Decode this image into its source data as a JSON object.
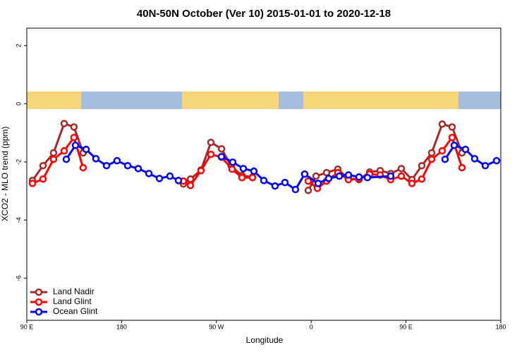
{
  "chart_data": {
    "type": "line",
    "title": "40N-50N October (Ver 10)   2015-01-01 to 2020-12-18",
    "x_label": "Longitude",
    "y_label": "XCO2 - MLO trend (ppm)",
    "xlim": [
      90,
      540
    ],
    "ylim": [
      -7.45,
      2.6
    ],
    "xticks": [
      {
        "value": 90,
        "label": "90 E"
      },
      {
        "value": 180,
        "label": "180"
      },
      {
        "value": 270,
        "label": "90 W"
      },
      {
        "value": 360,
        "label": "0"
      },
      {
        "value": 450,
        "label": "90 E"
      },
      {
        "value": 540,
        "label": "180"
      }
    ],
    "yticks": [
      -6,
      -4,
      -2,
      0,
      2
    ],
    "legend": "bottomleft",
    "series": [
      {
        "name": "Land Nadir",
        "color": "#a52a2a",
        "x": [
          95.4,
          105.4,
          115.4,
          125.5,
          134.8,
          143.5,
          null,
          238.7,
          245.4,
          255.4,
          264.8,
          274.9,
          284.2,
          294.3,
          304.3,
          null,
          357.2,
          364.6,
          374.6,
          385.3,
          395.4,
          405.4,
          415.5,
          425.5,
          435.5,
          445.6,
          455.7,
          465.0,
          474.4,
          484.4,
          493.8,
          503.2
        ],
        "values": [
          -2.64,
          -2.13,
          -1.69,
          -0.68,
          -0.8,
          -1.69,
          null,
          -2.76,
          -2.59,
          -2.28,
          -1.33,
          -1.55,
          -2.15,
          -2.47,
          -2.52,
          null,
          -2.98,
          -2.49,
          -2.37,
          -2.25,
          -2.57,
          -2.61,
          -2.35,
          -2.3,
          -2.4,
          -2.23,
          -2.61,
          -2.13,
          -1.69,
          -0.7,
          -0.8,
          -1.69
        ]
      },
      {
        "name": "Land Glint",
        "color": "#ff0000",
        "x": [
          95.4,
          105.4,
          115.4,
          125.5,
          134.8,
          143.5,
          null,
          238.7,
          245.4,
          255.4,
          264.8,
          274.9,
          284.9,
          294.3,
          304.3,
          null,
          357.2,
          365.9,
          374.6,
          385.3,
          395.4,
          405.4,
          415.5,
          425.5,
          435.5,
          445.6,
          455.7,
          465.0,
          474.4,
          484.4,
          493.8,
          503.2
        ],
        "values": [
          -2.74,
          -2.59,
          -1.91,
          -1.62,
          -1.16,
          -2.2,
          null,
          -2.66,
          -2.81,
          -2.3,
          -1.74,
          -1.84,
          -2.25,
          -2.54,
          -2.54,
          null,
          -2.66,
          -2.91,
          -2.66,
          -2.37,
          -2.61,
          -2.59,
          -2.42,
          -2.45,
          -2.61,
          -2.49,
          -2.74,
          -2.59,
          -1.91,
          -1.62,
          -1.16,
          -2.2
        ]
      },
      {
        "name": "Ocean Glint",
        "color": "#0000ee",
        "x": [
          127.5,
          136.2,
          146.3,
          155.6,
          165.7,
          175.7,
          185.8,
          195.8,
          205.9,
          215.9,
          225.9,
          234.0,
          null,
          274.8,
          285.5,
          295.6,
          305.6,
          315.0,
          325.7,
          335.1,
          345.1,
          353.8,
          366.6,
          376.6,
          386.7,
          395.4,
          405.4,
          413.4,
          435.5,
          null,
          487.1,
          495.8,
          506.5,
          515.2,
          525.3,
          536.0
        ],
        "values": [
          -1.91,
          -1.43,
          -1.57,
          -1.89,
          -2.13,
          -1.96,
          -2.13,
          -2.23,
          -2.4,
          -2.57,
          -2.49,
          -2.64,
          null,
          -1.82,
          -2.01,
          -2.23,
          -2.32,
          -2.64,
          -2.83,
          -2.71,
          -2.95,
          -2.42,
          -2.74,
          -2.57,
          -2.49,
          -2.45,
          -2.52,
          -2.54,
          -2.49,
          null,
          -1.91,
          -1.43,
          -1.57,
          -1.89,
          -2.13,
          -1.96
        ]
      }
    ]
  }
}
